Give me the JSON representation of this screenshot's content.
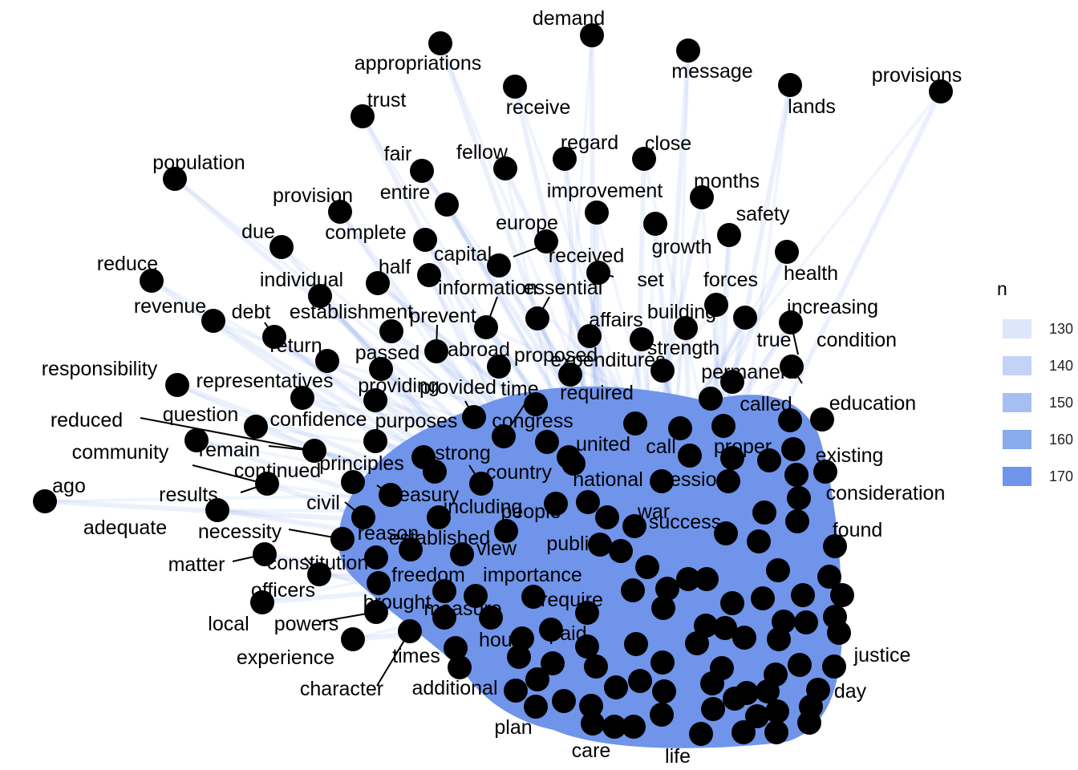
{
  "legend": {
    "title": "n",
    "entries": [
      {
        "label": "130",
        "color": "#dde6fa"
      },
      {
        "label": "140",
        "color": "#c3d3f6"
      },
      {
        "label": "150",
        "color": "#a6bef2"
      },
      {
        "label": "160",
        "color": "#8aaaee"
      },
      {
        "label": "170",
        "color": "#6f94ea"
      }
    ]
  },
  "node_color": "#000000",
  "edge_color": "#6f94ea",
  "labels": [
    "demand",
    "appropriations",
    "message",
    "provisions",
    "trust",
    "receive",
    "lands",
    "regard",
    "close",
    "fair",
    "fellow",
    "population",
    "entire",
    "improvement",
    "months",
    "provision",
    "safety",
    "due",
    "complete",
    "europe",
    "growth",
    "capital",
    "received",
    "reduce",
    "half",
    "set",
    "individual",
    "information",
    "essential",
    "health",
    "forces",
    "revenue",
    "establishment",
    "increasing",
    "debt",
    "prevent",
    "affairs",
    "building",
    "return",
    "abroad",
    "true",
    "condition",
    "strength",
    "responsibility",
    "passed",
    "proposed",
    "expenditures",
    "permanent",
    "representatives",
    "providing",
    "provided",
    "time",
    "required",
    "question",
    "confidence",
    "called",
    "education",
    "reduced",
    "purposes",
    "congress",
    "remain",
    "united",
    "call",
    "proper",
    "community",
    "strong",
    "existing",
    "continued",
    "principles",
    "country",
    "national",
    "session",
    "ago",
    "results",
    "treasury",
    "consideration",
    "civil",
    "including",
    "people",
    "war",
    "adequate",
    "necessity",
    "reason",
    "success",
    "found",
    "established",
    "public",
    "view",
    "matter",
    "constitution",
    "freedom",
    "importance",
    "officers",
    "brought",
    "require",
    "local",
    "powers",
    "measure",
    "experience",
    "paid",
    "house",
    "times",
    "justice",
    "day",
    "character",
    "additional",
    "plan",
    "care",
    "life"
  ]
}
